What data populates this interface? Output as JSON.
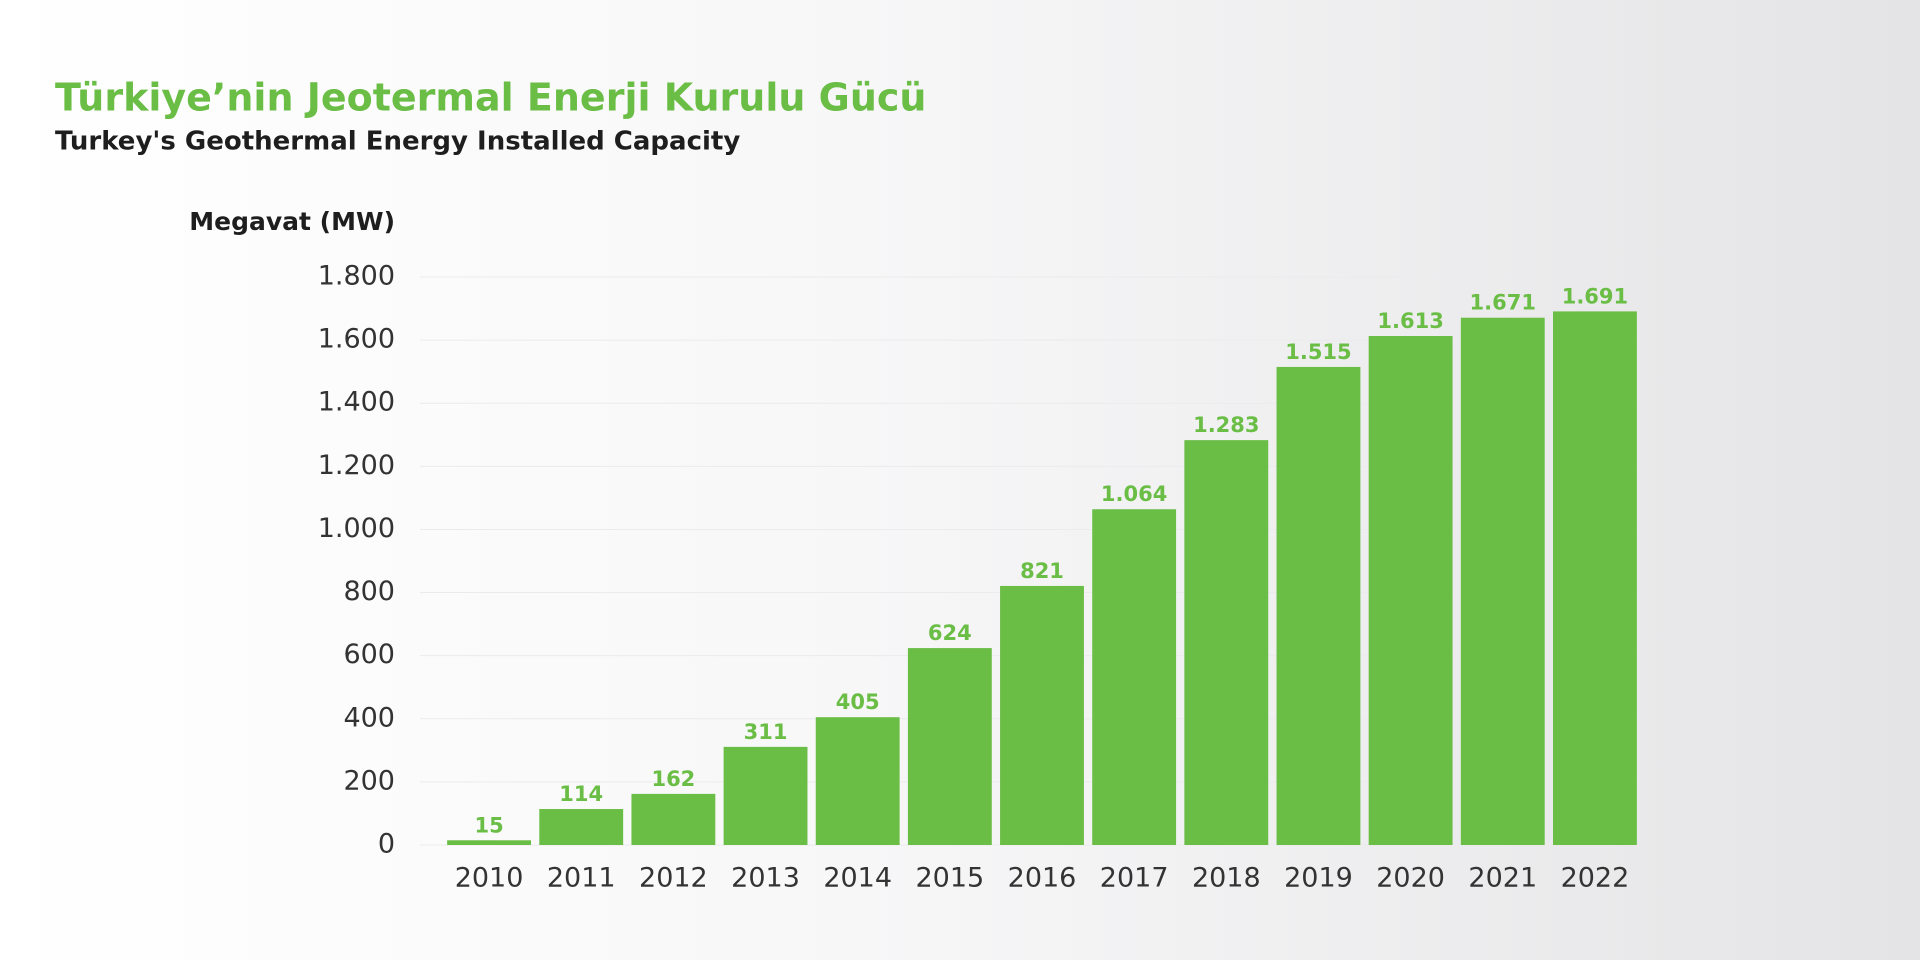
{
  "chart_data": {
    "type": "bar",
    "title": "Türkiye’nin Jeotermal Enerji Kurulu Gücü",
    "subtitle": "Turkey's Geothermal Energy Installed Capacity",
    "y_label": "Megavat (MW)",
    "categories": [
      "2010",
      "2011",
      "2012",
      "2013",
      "2014",
      "2015",
      "2016",
      "2017",
      "2018",
      "2019",
      "2020",
      "2021",
      "2022"
    ],
    "values": [
      15,
      114,
      162,
      311,
      405,
      624,
      821,
      1064,
      1283,
      1515,
      1613,
      1671,
      1691
    ],
    "value_labels": [
      "15",
      "114",
      "162",
      "311",
      "405",
      "624",
      "821",
      "1.064",
      "1.283",
      "1.515",
      "1.613",
      "1.671",
      "1.691"
    ],
    "color": "#6abd45",
    "ylim": [
      0,
      1800
    ],
    "yticks": [
      0,
      200,
      400,
      600,
      800,
      {
        "value": 1000,
        "label": "1.000"
      },
      {
        "value": 1200,
        "label": "1.200"
      },
      {
        "value": 1400,
        "label": "1.400"
      },
      {
        "value": 1600,
        "label": "1.600"
      },
      {
        "value": 1800,
        "label": "1.800"
      }
    ],
    "grid": true
  }
}
